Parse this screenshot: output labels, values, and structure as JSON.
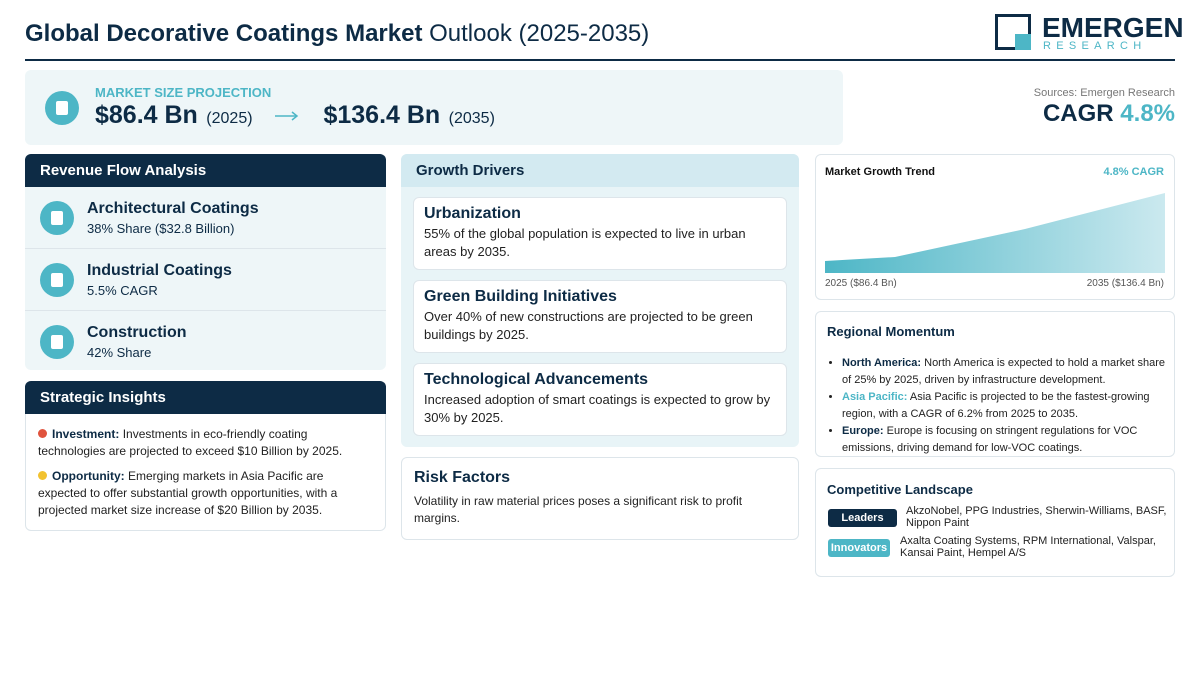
{
  "header": {
    "title_bold": "Global Decorative Coatings Market",
    "title_rest": "Outlook (2025-2035)",
    "logo_main": "EMERGEN",
    "logo_sub": "RESEARCH"
  },
  "projection": {
    "label": "MARKET SIZE PROJECTION",
    "start_value": "$86.4 Bn",
    "start_year": "(2025)",
    "end_value": "$136.4 Bn",
    "end_year": "(2035)"
  },
  "summary": {
    "sources": "Sources: Emergen Research",
    "cagr_label": "CAGR",
    "cagr_value": "4.8%"
  },
  "revenue_flow": {
    "title": "Revenue Flow Analysis",
    "items": [
      {
        "name": "Architectural Coatings",
        "detail": "38% Share ($32.8 Billion)"
      },
      {
        "name": "Industrial Coatings",
        "detail": "5.5% CAGR"
      },
      {
        "name": "Construction",
        "detail": "42% Share"
      }
    ]
  },
  "strategic_insights": {
    "title": "Strategic Insights",
    "items": [
      {
        "label": "Investment:",
        "text": "Investments in eco-friendly coating technologies are projected to exceed $10 Billion by 2025."
      },
      {
        "label": "Opportunity:",
        "text": "Emerging markets in Asia Pacific are expected to offer substantial growth opportunities, with a projected market size increase of $20 Billion by 2035."
      }
    ]
  },
  "growth_drivers": {
    "title": "Growth Drivers",
    "items": [
      {
        "title": "Urbanization",
        "text": "55% of the global population is expected to live in urban areas by 2035."
      },
      {
        "title": "Green Building Initiatives",
        "text": "Over 40% of new constructions are projected to be green buildings by 2025."
      },
      {
        "title": "Technological Advancements",
        "text": "Increased adoption of smart coatings is expected to grow by 30% by 2025."
      }
    ]
  },
  "risk_factors": {
    "title": "Risk Factors",
    "text": "Volatility in raw material prices poses a significant risk to profit margins."
  },
  "market_trend": {
    "title": "Market Growth Trend",
    "badge": "4.8% CAGR",
    "start_label": "2025 ($86.4 Bn)",
    "end_label": "2035 ($136.4 Bn)"
  },
  "regional_momentum": {
    "title": "Regional Momentum",
    "items": [
      {
        "region": "North America:",
        "color": "#0d2b45",
        "text": "North America is expected to hold a market share of 25% by 2025, driven by infrastructure development."
      },
      {
        "region": "Asia Pacific:",
        "color": "#4db6c6",
        "text": "Asia Pacific is projected to be the fastest-growing region, with a CAGR of 6.2% from 2025 to 2035."
      },
      {
        "region": "Europe:",
        "color": "#0d2b45",
        "text": "Europe is focusing on stringent regulations for VOC emissions, driving demand for low-VOC coatings."
      }
    ]
  },
  "competitive_landscape": {
    "title": "Competitive Landscape",
    "rows": [
      {
        "tag": "Leaders",
        "color": "#0d2b45",
        "companies": "AkzoNobel, PPG Industries, Sherwin-Williams, BASF, Nippon Paint"
      },
      {
        "tag": "Innovators",
        "color": "#4db6c6",
        "companies": "Axalta Coating Systems, RPM International, Valspar, Kansai Paint, Hempel A/S"
      }
    ]
  }
}
